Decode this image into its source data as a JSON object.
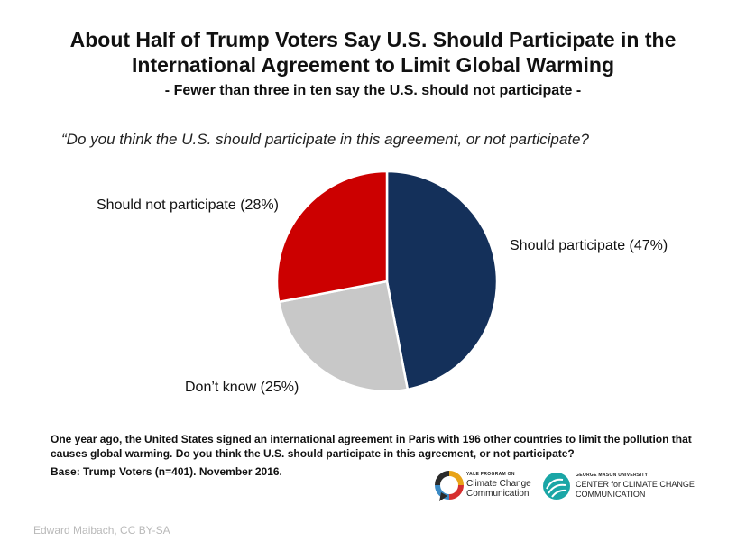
{
  "header": {
    "title_line1": "About Half of Trump Voters Say U.S. Should Participate in the",
    "title_line2": "International Agreement to Limit Global Warming",
    "subtitle_before": "- Fewer than three in ten say the U.S. should ",
    "subtitle_underlined": "not",
    "subtitle_after": " participate -"
  },
  "question": "“Do you think the U.S. should participate in this agreement, or not participate?",
  "chart_data": {
    "type": "pie",
    "title": "Do you think the U.S. should participate in this agreement, or not participate?",
    "start_angle_deg": 0,
    "direction": "clockwise",
    "slices": [
      {
        "label": "Should participate (47%)",
        "name": "Should participate",
        "value": 47,
        "color": "#14305a"
      },
      {
        "label": "Don’t know (25%)",
        "name": "Don’t know",
        "value": 25,
        "color": "#c8c8c8"
      },
      {
        "label": "Should not participate (28%)",
        "name": "Should not participate",
        "value": 28,
        "color": "#cc0000"
      }
    ]
  },
  "footnote": {
    "text": "One year ago, the United States signed an international agreement in Paris with 196 other countries to limit the pollution that causes global warming. Do you think the U.S. should participate in this agreement, or not participate?",
    "base": "Base: Trump Voters (n=401). November 2016."
  },
  "logos": {
    "yale_small": "YALE PROGRAM ON",
    "yale_line1": "Climate Change",
    "yale_line2": "Communication",
    "gmu_small": "GEORGE MASON UNIVERSITY",
    "gmu_line1": "CENTER for CLIMATE CHANGE",
    "gmu_line2": "COMMUNICATION",
    "yale_colors": [
      "#e8a317",
      "#d62f2f",
      "#3b8ac4",
      "#2a2a2a"
    ],
    "gmu_color": "#1aa6a6"
  },
  "credit": "Edward Maibach, CC BY-SA"
}
